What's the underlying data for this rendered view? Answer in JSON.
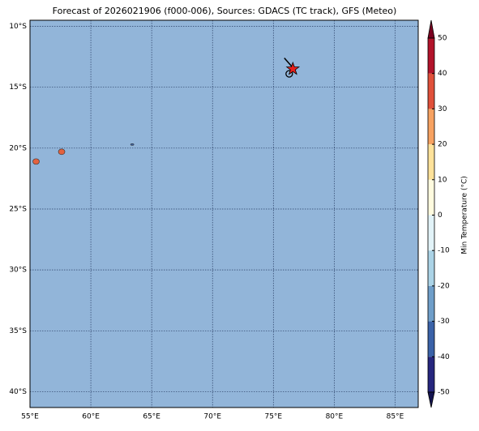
{
  "map": {
    "title": "Forecast of 2026021906 (f000-006), Sources: GDACS (TC track), GFS (Meteo)",
    "lonlim": [
      55,
      86.9
    ],
    "latlim": [
      -9.5,
      -41.3
    ],
    "lon_ticks": [
      {
        "value": 55,
        "label": "55°E"
      },
      {
        "value": 60,
        "label": "60°E"
      },
      {
        "value": 65,
        "label": "65°E"
      },
      {
        "value": 70,
        "label": "70°E"
      },
      {
        "value": 75,
        "label": "75°E"
      },
      {
        "value": 80,
        "label": "80°E"
      },
      {
        "value": 85,
        "label": "85°E"
      }
    ],
    "lat_ticks": [
      {
        "value": -10,
        "label": "10°S"
      },
      {
        "value": -15,
        "label": "15°S"
      },
      {
        "value": -20,
        "label": "20°S"
      },
      {
        "value": -25,
        "label": "25°S"
      },
      {
        "value": -30,
        "label": "30°S"
      },
      {
        "value": -35,
        "label": "35°S"
      },
      {
        "value": -40,
        "label": "40°S"
      }
    ],
    "sea_color": "#92b5d9",
    "islands": [
      {
        "lon": 55.5,
        "lat": -21.1,
        "color": "#e3623f"
      },
      {
        "lon": 57.6,
        "lat": -20.3,
        "color": "#e3623f"
      },
      {
        "lon": 63.4,
        "lat": -19.7,
        "color": "#3a62a8"
      }
    ],
    "track": {
      "lon": [
        75.9,
        76.6,
        76.9
      ],
      "lat": [
        -12.6,
        -13.4,
        -13.9
      ]
    },
    "storm": {
      "lon": 76.6,
      "lat": -13.5
    },
    "position": {
      "lon": 76.3,
      "lat": -13.9
    },
    "colorbar": {
      "label": "Min Temperature (°C)",
      "lim": [
        -50,
        50
      ],
      "ticks": [
        -50,
        -40,
        -30,
        -20,
        -10,
        0,
        10,
        20,
        30,
        40,
        50
      ],
      "colors": [
        "#26267e",
        "#3a62a8",
        "#6f9ec9",
        "#abd3e6",
        "#e2f3f8",
        "#fffbdf",
        "#fee29a",
        "#f7a261",
        "#e0503a",
        "#b2132a"
      ],
      "under": "#141450",
      "over": "#7a0020"
    }
  }
}
